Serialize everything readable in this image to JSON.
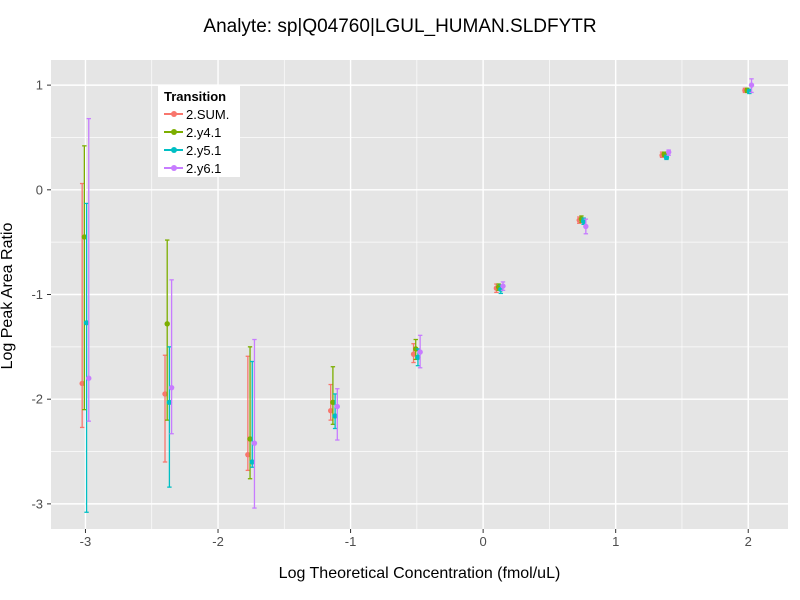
{
  "title": "Analyte: sp|Q04760|LGUL_HUMAN.SLDFYTR",
  "chart_data": {
    "type": "scatter",
    "title": "Analyte: sp|Q04760|LGUL_HUMAN.SLDFYTR",
    "xlabel": "Log Theoretical Concentration (fmol/uL)",
    "ylabel": "Log Peak Area Ratio",
    "xlim": [
      -3.26,
      2.3
    ],
    "ylim": [
      -3.24,
      1.24
    ],
    "x_ticks": [
      -3,
      -2,
      -1,
      0,
      1,
      2
    ],
    "y_ticks": [
      -3,
      -2,
      -1,
      0,
      1
    ],
    "minor_step": 0.5,
    "grid": "white major and minor gridlines on gray panel (ggplot2 style)",
    "panel_color": "#E5E5E5",
    "gridline_color": "#FFFFFF",
    "tick_color": "#333333",
    "tick_label_color": "#4D4D4D",
    "legend": {
      "title": "Transition",
      "position": "inside-top-left"
    },
    "x": [
      -3.0,
      -2.375,
      -1.75,
      -1.125,
      -0.5,
      0.125,
      0.75,
      1.375,
      2.0
    ],
    "series": [
      {
        "name": "2.SUM.",
        "color": "#F8766D",
        "y": [
          -1.85,
          -1.95,
          -2.53,
          -2.11,
          -1.57,
          -0.94,
          -0.29,
          0.33,
          0.95
        ],
        "lo": [
          -2.27,
          -2.6,
          -2.68,
          -2.2,
          -1.65,
          -0.98,
          -0.32,
          0.31,
          0.93
        ],
        "hi": [
          0.06,
          -1.58,
          -1.59,
          -1.86,
          -1.47,
          -0.9,
          -0.26,
          0.36,
          0.97
        ]
      },
      {
        "name": "2.y4.1",
        "color": "#7CAE00",
        "y": [
          -0.45,
          -1.28,
          -2.38,
          -2.03,
          -1.52,
          -0.93,
          -0.28,
          0.34,
          0.95
        ],
        "lo": [
          -2.1,
          -2.2,
          -2.76,
          -2.24,
          -1.62,
          -0.96,
          -0.31,
          0.32,
          0.93
        ],
        "hi": [
          0.42,
          -0.48,
          -1.5,
          -1.69,
          -1.43,
          -0.9,
          -0.25,
          0.36,
          0.97
        ]
      },
      {
        "name": "2.y5.1",
        "color": "#00BFC4",
        "y": [
          -1.27,
          -2.03,
          -2.6,
          -2.16,
          -1.6,
          -0.95,
          -0.3,
          0.31,
          0.94
        ],
        "lo": [
          -3.08,
          -2.84,
          -2.65,
          -2.28,
          -1.68,
          -0.99,
          -0.33,
          0.29,
          0.92
        ],
        "hi": [
          -0.13,
          -1.5,
          -1.64,
          -1.95,
          -1.52,
          -0.91,
          -0.27,
          0.33,
          0.96
        ]
      },
      {
        "name": "2.y6.1",
        "color": "#C77CFF",
        "y": [
          -1.8,
          -1.89,
          -2.42,
          -2.07,
          -1.55,
          -0.92,
          -0.35,
          0.36,
          1.0
        ],
        "lo": [
          -2.21,
          -2.33,
          -3.04,
          -2.39,
          -1.7,
          -0.96,
          -0.42,
          0.33,
          0.93
        ],
        "hi": [
          0.68,
          -0.86,
          -1.43,
          -1.9,
          -1.39,
          -0.88,
          -0.28,
          0.38,
          1.06
        ]
      }
    ]
  }
}
